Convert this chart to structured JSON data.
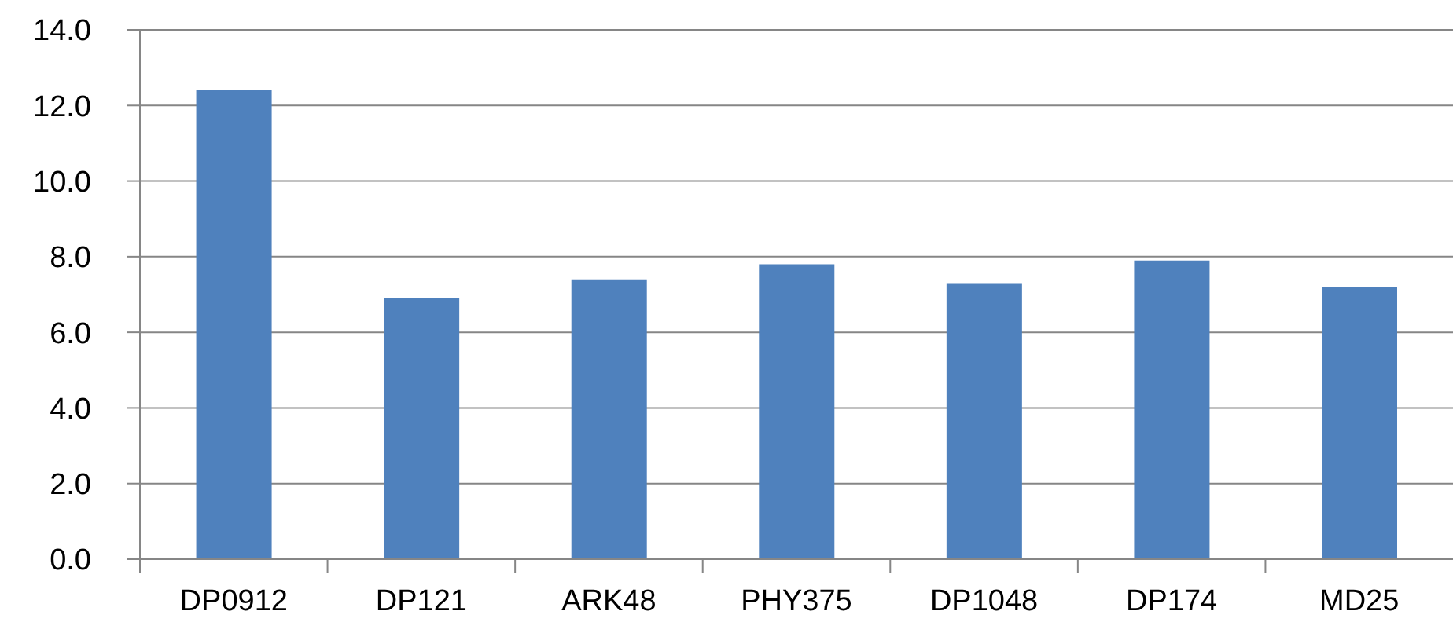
{
  "chart_data": {
    "type": "bar",
    "categories": [
      "DP0912",
      "DP121",
      "ARK48",
      "PHY375",
      "DP1048",
      "DP174",
      "MD25"
    ],
    "values": [
      12.4,
      6.9,
      7.4,
      7.8,
      7.3,
      7.9,
      7.2
    ],
    "color": "#4f81bd",
    "ylim": [
      0,
      14
    ],
    "yticks": [
      {
        "value": 0,
        "label": "0.0"
      },
      {
        "value": 2,
        "label": "2.0"
      },
      {
        "value": 4,
        "label": "4.0"
      },
      {
        "value": 6,
        "label": "6.0"
      },
      {
        "value": 8,
        "label": "8.0"
      },
      {
        "value": 10,
        "label": "10.0"
      },
      {
        "value": 12,
        "label": "12.0"
      },
      {
        "value": 14,
        "label": "14.0"
      }
    ],
    "grid": "y"
  }
}
